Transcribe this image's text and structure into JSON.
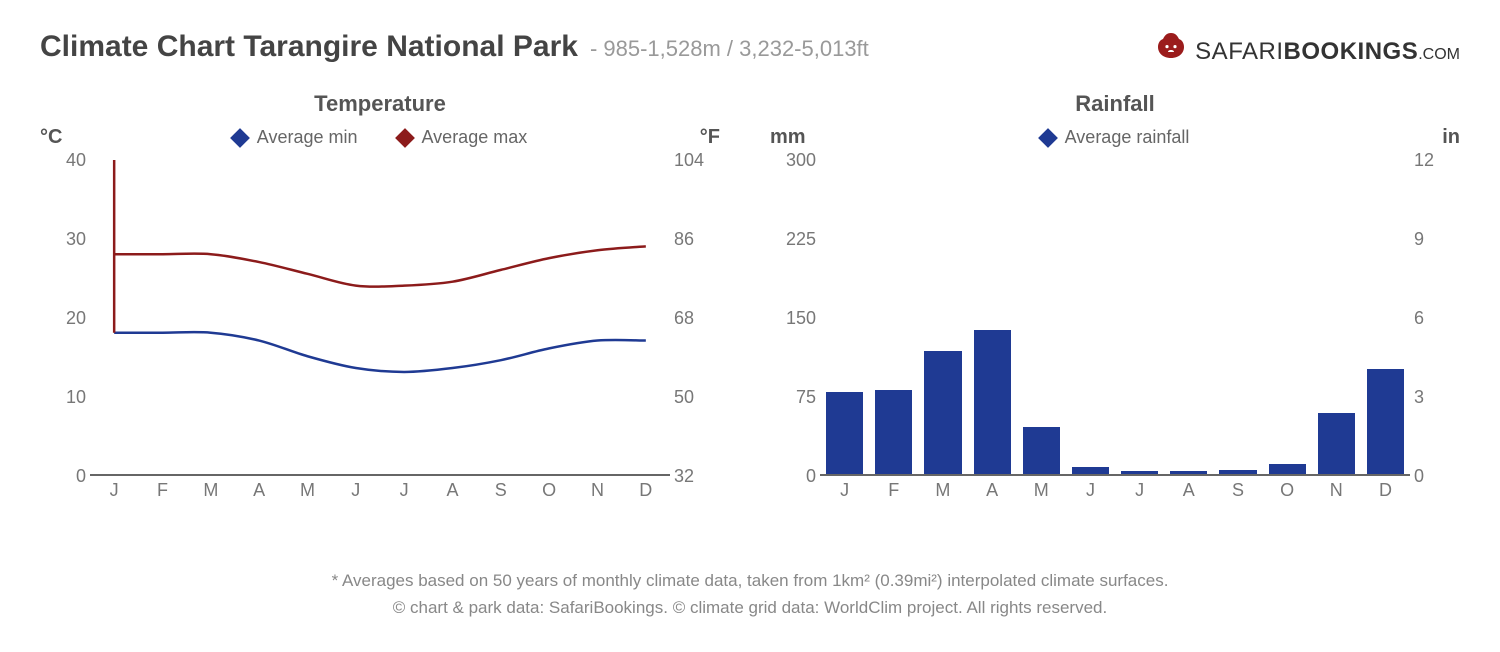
{
  "header": {
    "title": "Climate Chart Tarangire National Park",
    "subtitle": "- 985-1,528m / 3,232-5,013ft",
    "logo_safari": "SAFARI",
    "logo_bookings": "BOOKINGS",
    "logo_com": ".COM"
  },
  "months": [
    "J",
    "F",
    "M",
    "A",
    "M",
    "J",
    "J",
    "A",
    "S",
    "O",
    "N",
    "D"
  ],
  "temperature_chart": {
    "title": "Temperature",
    "legend_min": "Average min",
    "legend_max": "Average max",
    "left_axis_label": "°C",
    "right_axis_label": "°F",
    "y_left_ticks": [
      "40",
      "30",
      "20",
      "10",
      "0"
    ],
    "y_right_ticks": [
      "104",
      "86",
      "68",
      "50",
      "32"
    ],
    "ymin": 0,
    "ymax": 40,
    "min_series": [
      18,
      18,
      18,
      17,
      15,
      13.5,
      13,
      13.5,
      14.5,
      16,
      17,
      17
    ],
    "max_series": [
      28,
      28,
      28,
      27,
      25.5,
      24,
      24,
      24.5,
      26,
      27.5,
      28.5,
      29
    ],
    "min_color": "#1f3a93",
    "max_color": "#8c1b1b",
    "line_width": 2.5,
    "axis_color": "#666666",
    "tick_color": "#777777"
  },
  "rainfall_chart": {
    "title": "Rainfall",
    "legend_label": "Average rainfall",
    "left_axis_label": "mm",
    "right_axis_label": "in",
    "y_left_ticks": [
      "300",
      "225",
      "150",
      "75",
      "0"
    ],
    "y_right_ticks": [
      "12",
      "9",
      "6",
      "3",
      "0"
    ],
    "ymin": 0,
    "ymax": 300,
    "values": [
      78,
      80,
      118,
      138,
      45,
      7,
      3,
      3,
      4,
      10,
      58,
      100
    ],
    "bar_color": "#1f3a93",
    "axis_color": "#666666",
    "tick_color": "#777777"
  },
  "footer": {
    "line1": "* Averages based on 50 years of monthly climate data, taken from 1km² (0.39mi²) interpolated climate surfaces.",
    "line2": "© chart & park data: SafariBookings. © climate grid data: WorldClim project. All rights reserved."
  },
  "colors": {
    "logo_icon": "#9b1c1c"
  }
}
